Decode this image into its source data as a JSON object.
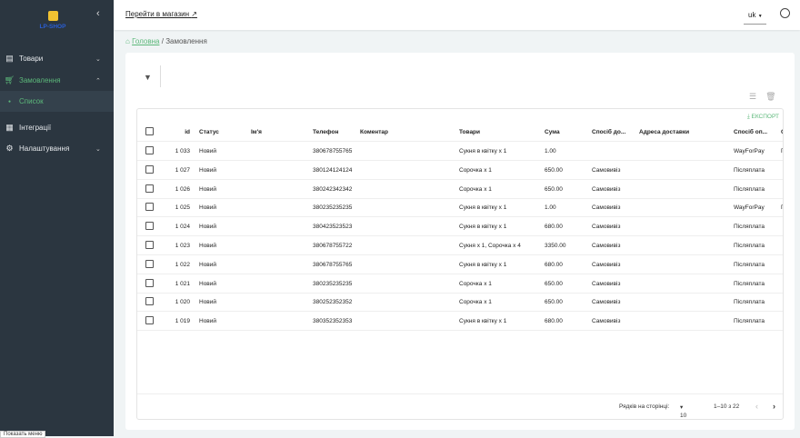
{
  "sidebar": {
    "logo": "LP-SHOP",
    "items": [
      {
        "label": "Товари",
        "icon": "archive-icon"
      },
      {
        "label": "Замовлення",
        "icon": "cart-icon"
      },
      {
        "label": "Список"
      },
      {
        "label": "Інтеграції",
        "icon": "widgets-icon"
      },
      {
        "label": "Налаштування",
        "icon": "gear-icon"
      }
    ],
    "tooltip": "Показать меню"
  },
  "header": {
    "shop_link": "Перейти в магазин",
    "lang": "uk"
  },
  "breadcrumb": {
    "home": "Головна",
    "sep": "/",
    "current": "Замовлення"
  },
  "table": {
    "export": "ЕКСПОРТ",
    "columns": [
      "id",
      "Статус",
      "Ім'я",
      "Телефон",
      "Коментар",
      "Товари",
      "Сума",
      "Спосіб до...",
      "Адреса доставки",
      "Спосіб оп...",
      "С"
    ],
    "rows": [
      [
        "1 033",
        "Новий",
        "",
        "380678755765",
        "",
        "Сукня в квітку x 1",
        "1.00",
        "",
        "",
        "WayForPay",
        "П"
      ],
      [
        "1 027",
        "Новий",
        "",
        "380124124124",
        "",
        "Сорочка x 1",
        "650.00",
        "Самовивіз",
        "",
        "Післяплата",
        ""
      ],
      [
        "1 026",
        "Новий",
        "",
        "380242342342",
        "",
        "Сорочка x 1",
        "650.00",
        "Самовивіз",
        "",
        "Післяплата",
        ""
      ],
      [
        "1 025",
        "Новий",
        "",
        "380235235235",
        "",
        "Сукня в квітку x 1",
        "1.00",
        "Самовивіз",
        "",
        "WayForPay",
        "П"
      ],
      [
        "1 024",
        "Новий",
        "",
        "380423523523",
        "",
        "Сукня в квітку x 1",
        "680.00",
        "Самовивіз",
        "",
        "Післяплата",
        ""
      ],
      [
        "1 023",
        "Новий",
        "",
        "380678755722",
        "",
        "Сукня x 1, Сорочка x 4",
        "3350.00",
        "Самовивіз",
        "",
        "Післяплата",
        ""
      ],
      [
        "1 022",
        "Новий",
        "",
        "380678755765",
        "",
        "Сукня в квітку x 1",
        "680.00",
        "Самовивіз",
        "",
        "Післяплата",
        ""
      ],
      [
        "1 021",
        "Новий",
        "",
        "380235235235",
        "",
        "Сорочка x 1",
        "650.00",
        "Самовивіз",
        "",
        "Післяплата",
        ""
      ],
      [
        "1 020",
        "Новий",
        "",
        "380252352352",
        "",
        "Сорочка x 1",
        "650.00",
        "Самовивіз",
        "",
        "Післяплата",
        ""
      ],
      [
        "1 019",
        "Новий",
        "",
        "380352352353",
        "",
        "Сукня в квітку x 1",
        "680.00",
        "Самовивіз",
        "",
        "Післяплата",
        ""
      ]
    ]
  },
  "pagination": {
    "rows_label": "Рядків на сторінці:",
    "rows_value": "10",
    "range": "1–10 з 22"
  }
}
